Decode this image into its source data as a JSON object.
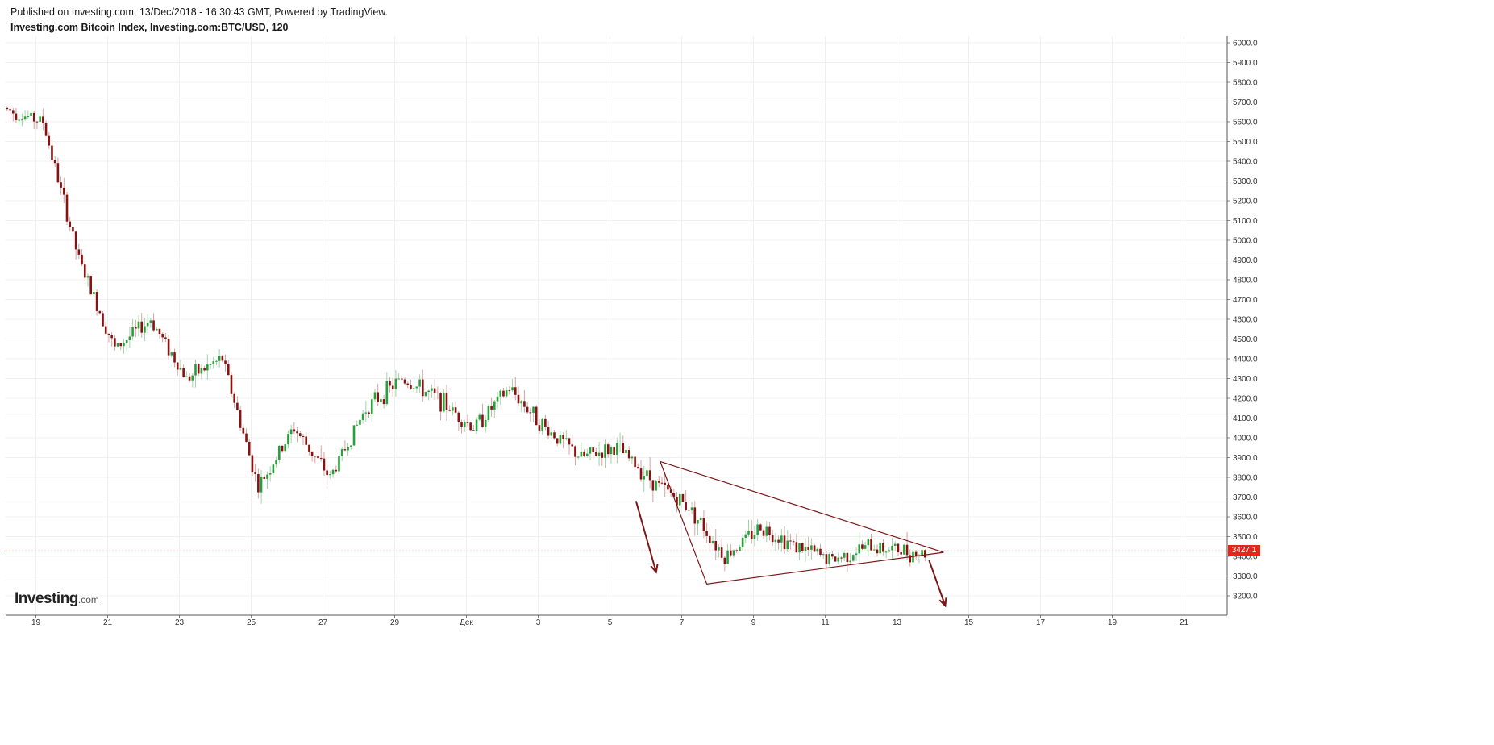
{
  "header": {
    "published": "Published on Investing.com, 13/Dec/2018 - 16:30:43 GMT, Powered by TradingView.",
    "title": "Investing.com Bitcoin Index, Investing.com:BTC/USD, 120"
  },
  "logo": {
    "main": "Investing",
    "suffix": ".com"
  },
  "chart_data": {
    "type": "candlestick",
    "title": "Investing.com Bitcoin Index, Investing.com:BTC/USD, 120",
    "timeframe": "120",
    "x_ticks": [
      "19",
      "21",
      "23",
      "25",
      "27",
      "29",
      "Дек",
      "3",
      "5",
      "7",
      "9",
      "11",
      "13",
      "15",
      "17",
      "19",
      "21"
    ],
    "y_ticks": [
      "3200.0",
      "3300.0",
      "3400.0",
      "3500.0",
      "3600.0",
      "3700.0",
      "3800.0",
      "3900.0",
      "4000.0",
      "4100.0",
      "4200.0",
      "4300.0",
      "4400.0",
      "4500.0",
      "4600.0",
      "4700.0",
      "4800.0",
      "4900.0",
      "5000.0",
      "5100.0",
      "5200.0",
      "5300.0",
      "5400.0",
      "5500.0",
      "5600.0",
      "5700.0",
      "5800.0",
      "5900.0",
      "6000.0"
    ],
    "ylim": [
      3150,
      6030
    ],
    "grid": true,
    "last_price": "3427.1",
    "colors": {
      "up": "#26a13a",
      "down": "#8b1010",
      "trendline": "#7a1818",
      "price_line": "#e3261b",
      "grid": "#f0f0f0"
    },
    "series": [
      {
        "name": "BTC/USD",
        "x": [
          "Nov 18",
          "Nov 19",
          "Nov 20",
          "Nov 21",
          "Nov 22",
          "Nov 23",
          "Nov 24",
          "Nov 25",
          "Nov 26",
          "Nov 27",
          "Nov 28",
          "Nov 29",
          "Nov 30",
          "Dec 1",
          "Dec 2",
          "Dec 3",
          "Dec 4",
          "Dec 5",
          "Dec 6",
          "Dec 7",
          "Dec 8",
          "Dec 9",
          "Dec 10",
          "Dec 11",
          "Dec 12",
          "Dec 13"
        ],
        "values": [
          5660,
          5600,
          4900,
          4450,
          4600,
          4300,
          4400,
          3750,
          4050,
          3800,
          4150,
          4300,
          4200,
          4050,
          4250,
          4050,
          3900,
          3950,
          3780,
          3650,
          3400,
          3550,
          3450,
          3380,
          3450,
          3427
        ]
      }
    ],
    "annotations": [
      {
        "type": "triangle",
        "points": [
          [
            "Dec 6",
            3880
          ],
          [
            "Dec 14",
            3420
          ],
          [
            "Dec 7",
            3260
          ]
        ]
      },
      {
        "type": "arrow",
        "from": [
          "Dec 6",
          3680
        ],
        "to": [
          "Dec 6",
          3320
        ]
      },
      {
        "type": "arrow",
        "from": [
          "Dec 14",
          3380
        ],
        "to": [
          "Dec 14",
          3150
        ]
      }
    ]
  }
}
